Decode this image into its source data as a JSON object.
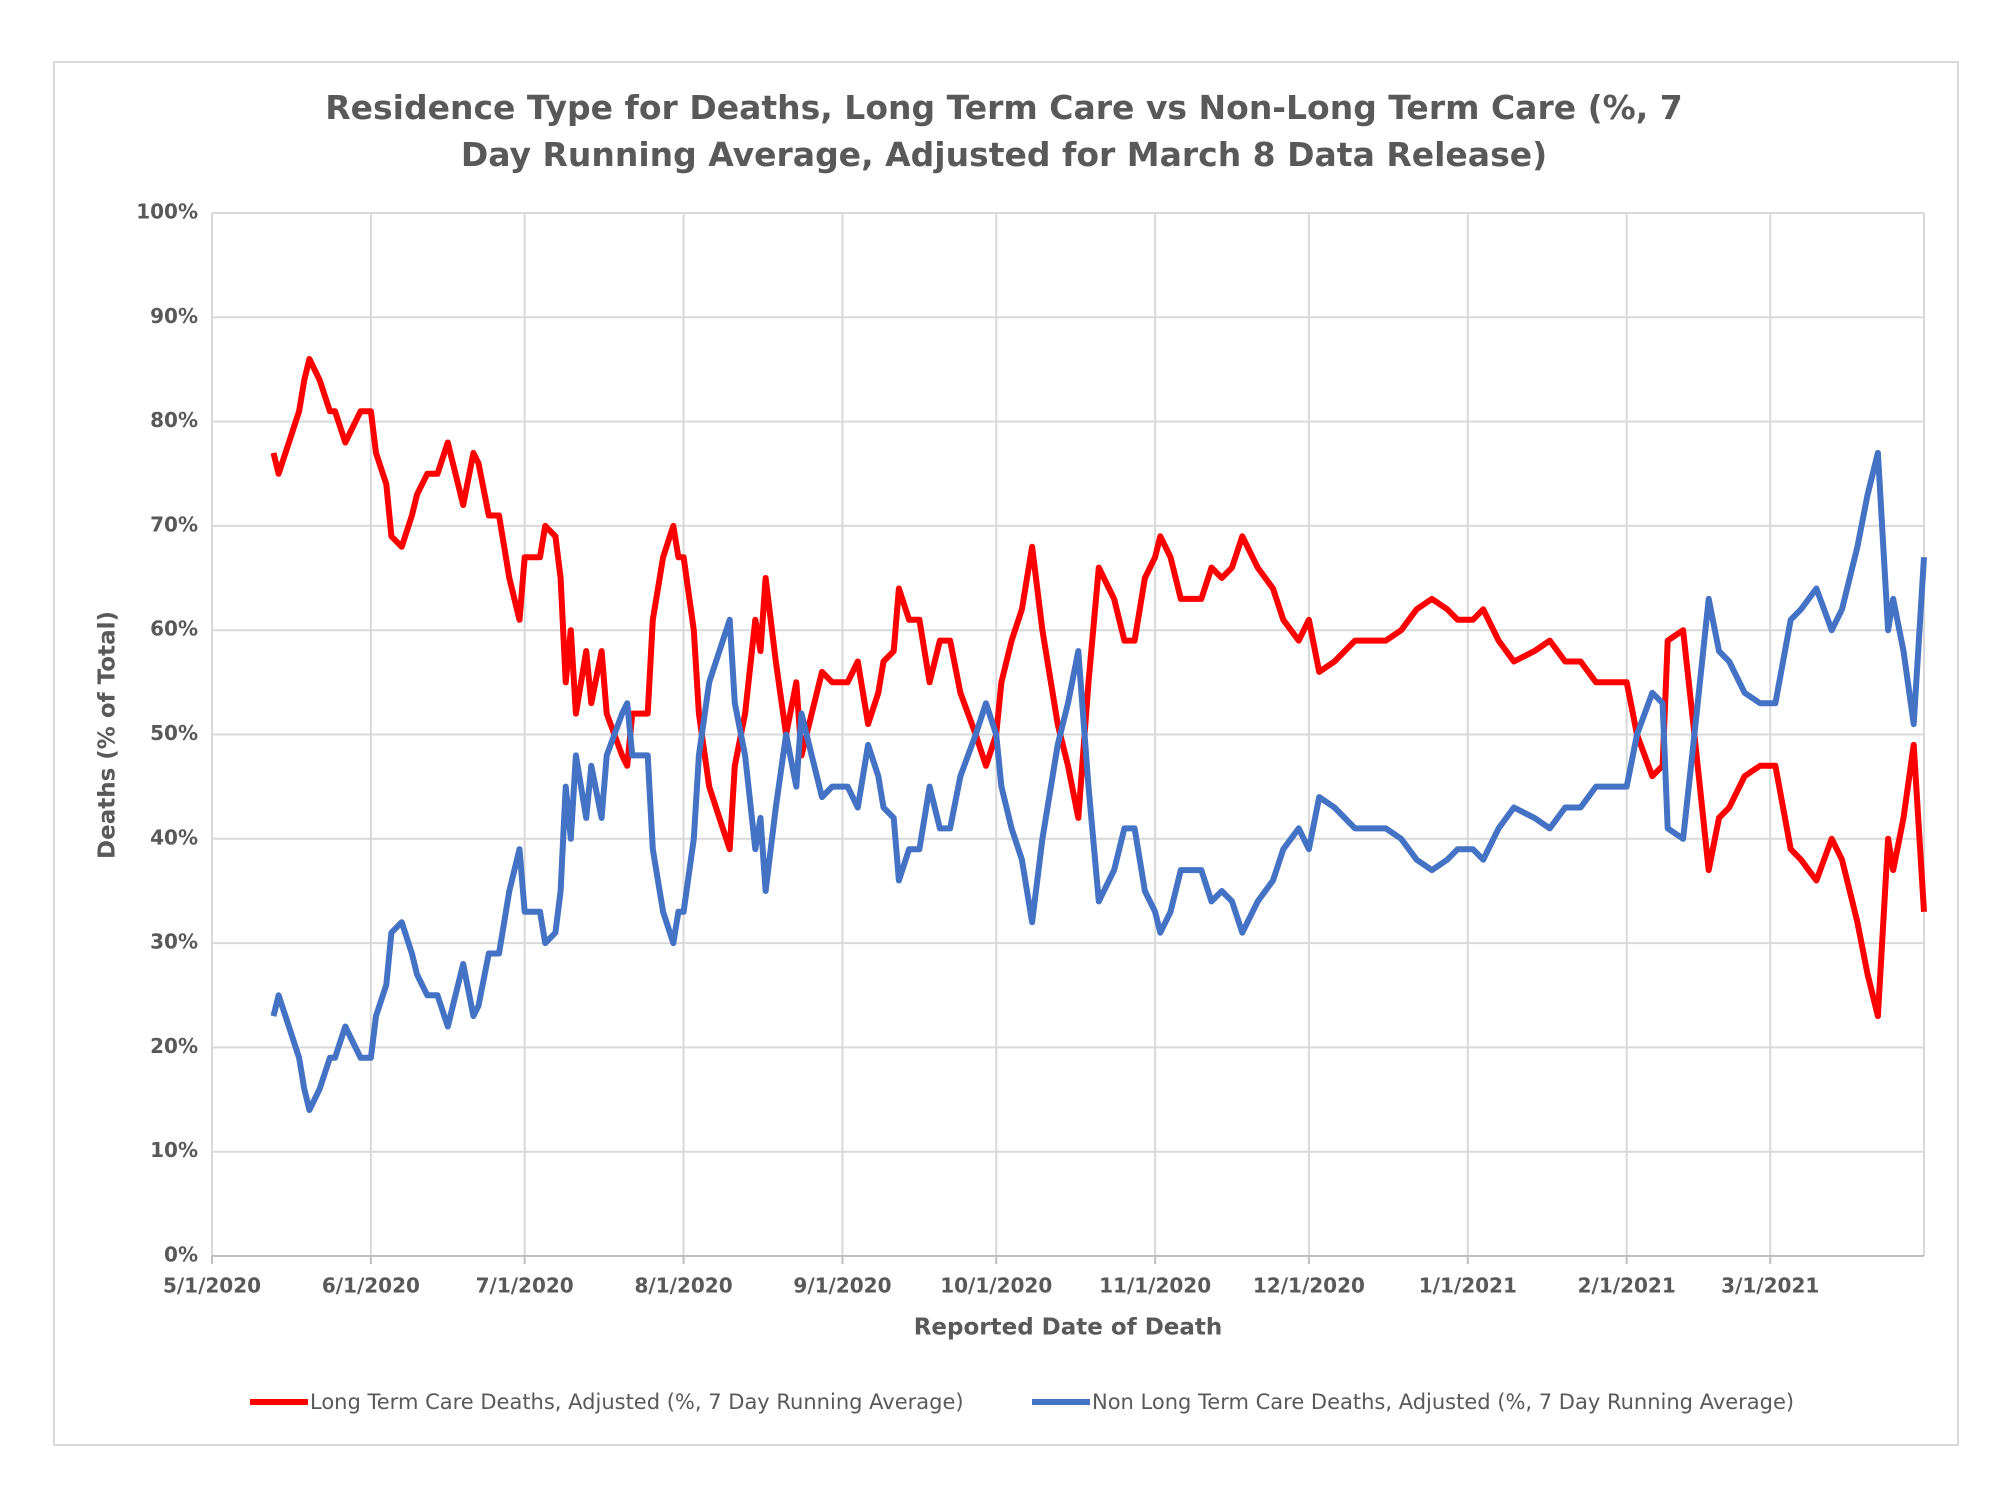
{
  "chart_data": {
    "type": "line",
    "title": "Residence Type for Deaths, Long Term Care vs Non-Long Term Care (%, 7 Day Running Average, Adjusted for March 8 Data Release)",
    "x_label": "Reported Date of Death",
    "y_label": "Deaths (% of Total)",
    "x": [
      "5/13/2020",
      "5/14/2020",
      "5/16/2020",
      "5/18/2020",
      "5/19/2020",
      "5/20/2020",
      "5/22/2020",
      "5/24/2020",
      "5/25/2020",
      "5/27/2020",
      "5/29/2020",
      "5/30/2020",
      "6/1/2020",
      "6/2/2020",
      "6/4/2020",
      "6/5/2020",
      "6/7/2020",
      "6/9/2020",
      "6/10/2020",
      "6/12/2020",
      "6/14/2020",
      "6/16/2020",
      "6/17/2020",
      "6/19/2020",
      "6/21/2020",
      "6/22/2020",
      "6/24/2020",
      "6/26/2020",
      "6/27/2020",
      "6/28/2020",
      "6/30/2020",
      "7/1/2020",
      "7/4/2020",
      "7/5/2020",
      "7/7/2020",
      "7/8/2020",
      "7/9/2020",
      "7/10/2020",
      "7/11/2020",
      "7/13/2020",
      "7/14/2020",
      "7/16/2020",
      "7/17/2020",
      "7/20/2020",
      "7/21/2020",
      "7/22/2020",
      "7/25/2020",
      "7/26/2020",
      "7/28/2020",
      "7/30/2020",
      "7/31/2020",
      "8/1/2020",
      "8/3/2020",
      "8/4/2020",
      "8/6/2020",
      "8/8/2020",
      "8/10/2020",
      "8/11/2020",
      "8/13/2020",
      "8/15/2020",
      "8/16/2020",
      "8/17/2020",
      "8/19/2020",
      "8/21/2020",
      "8/23/2020",
      "8/24/2020",
      "8/26/2020",
      "8/28/2020",
      "8/30/2020",
      "9/2/2020",
      "9/4/2020",
      "9/6/2020",
      "9/8/2020",
      "9/9/2020",
      "9/11/2020",
      "9/12/2020",
      "9/14/2020",
      "9/16/2020",
      "9/18/2020",
      "9/20/2020",
      "9/22/2020",
      "9/24/2020",
      "9/27/2020",
      "9/29/2020",
      "10/1/2020",
      "10/2/2020",
      "10/4/2020",
      "10/6/2020",
      "10/8/2020",
      "10/10/2020",
      "10/13/2020",
      "10/15/2020",
      "10/17/2020",
      "10/19/2020",
      "10/21/2020",
      "10/23/2020",
      "10/24/2020",
      "10/26/2020",
      "10/28/2020",
      "10/30/2020",
      "11/1/2020",
      "11/2/2020",
      "11/4/2020",
      "11/6/2020",
      "11/8/2020",
      "11/10/2020",
      "11/12/2020",
      "11/14/2020",
      "11/16/2020",
      "11/18/2020",
      "11/21/2020",
      "11/24/2020",
      "11/26/2020",
      "11/29/2020",
      "12/1/2020",
      "12/3/2020",
      "12/6/2020",
      "12/10/2020",
      "12/13/2020",
      "12/16/2020",
      "12/19/2020",
      "12/22/2020",
      "12/25/2020",
      "12/28/2020",
      "12/30/2020",
      "1/2/2021",
      "1/4/2021",
      "1/7/2021",
      "1/10/2021",
      "1/14/2021",
      "1/17/2021",
      "1/20/2021",
      "1/23/2021",
      "1/26/2021",
      "1/29/2021",
      "2/1/2021",
      "2/3/2021",
      "2/6/2021",
      "2/8/2021",
      "2/9/2021",
      "2/12/2021",
      "2/14/2021",
      "2/17/2021",
      "2/19/2021",
      "2/21/2021",
      "2/24/2021",
      "2/27/2021",
      "3/2/2021",
      "3/5/2021",
      "3/7/2021",
      "3/10/2021",
      "3/13/2021",
      "3/15/2021",
      "3/18/2021",
      "3/20/2021",
      "3/22/2021",
      "3/24/2021",
      "3/25/2021",
      "3/27/2021",
      "3/29/2021",
      "3/31/2021"
    ],
    "series": [
      {
        "name": "Long Term Care Deaths, Adjusted (%, 7 Day Running Average)",
        "color": "#ff0000",
        "values": [
          77,
          75,
          78,
          81,
          84,
          86,
          84,
          81,
          81,
          78,
          80,
          81,
          81,
          77,
          74,
          69,
          68,
          71,
          73,
          75,
          75,
          78,
          76,
          72,
          77,
          76,
          71,
          71,
          68,
          65,
          61,
          67,
          67,
          70,
          69,
          65,
          55,
          60,
          52,
          58,
          53,
          58,
          52,
          48,
          47,
          52,
          52,
          61,
          67,
          70,
          67,
          67,
          60,
          52,
          45,
          42,
          39,
          47,
          52,
          61,
          58,
          65,
          57,
          50,
          55,
          48,
          52,
          56,
          55,
          55,
          57,
          51,
          54,
          57,
          58,
          64,
          61,
          61,
          55,
          59,
          59,
          54,
          50,
          47,
          50,
          55,
          59,
          62,
          68,
          60,
          51,
          47,
          42,
          55,
          66,
          64,
          63,
          59,
          59,
          65,
          67,
          69,
          67,
          63,
          63,
          63,
          66,
          65,
          66,
          69,
          66,
          64,
          61,
          59,
          61,
          56,
          57,
          59,
          59,
          59,
          60,
          62,
          63,
          62,
          61,
          61,
          62,
          59,
          57,
          58,
          59,
          57,
          57,
          55,
          55,
          55,
          50,
          46,
          47,
          59,
          60,
          51,
          37,
          42,
          43,
          46,
          47,
          47,
          39,
          38,
          36,
          40,
          38,
          32,
          27,
          23,
          40,
          37,
          42,
          49,
          33
        ]
      },
      {
        "name": "Non Long Term Care Deaths, Adjusted (%, 7 Day Running Average)",
        "color": "#4472c4",
        "values": [
          23,
          25,
          22,
          19,
          16,
          14,
          16,
          19,
          19,
          22,
          20,
          19,
          19,
          23,
          26,
          31,
          32,
          29,
          27,
          25,
          25,
          22,
          24,
          28,
          23,
          24,
          29,
          29,
          32,
          35,
          39,
          33,
          33,
          30,
          31,
          35,
          45,
          40,
          48,
          42,
          47,
          42,
          48,
          52,
          53,
          48,
          48,
          39,
          33,
          30,
          33,
          33,
          40,
          48,
          55,
          58,
          61,
          53,
          48,
          39,
          42,
          35,
          43,
          50,
          45,
          52,
          48,
          44,
          45,
          45,
          43,
          49,
          46,
          43,
          42,
          36,
          39,
          39,
          45,
          41,
          41,
          46,
          50,
          53,
          50,
          45,
          41,
          38,
          32,
          40,
          49,
          53,
          58,
          45,
          34,
          36,
          37,
          41,
          41,
          35,
          33,
          31,
          33,
          37,
          37,
          37,
          34,
          35,
          34,
          31,
          34,
          36,
          39,
          41,
          39,
          44,
          43,
          41,
          41,
          41,
          40,
          38,
          37,
          38,
          39,
          39,
          38,
          41,
          43,
          42,
          41,
          43,
          43,
          45,
          45,
          45,
          50,
          54,
          53,
          41,
          40,
          49,
          63,
          58,
          57,
          54,
          53,
          53,
          61,
          62,
          64,
          60,
          62,
          68,
          73,
          77,
          60,
          63,
          58,
          51,
          67
        ]
      }
    ],
    "xlim": [
      "5/1/2020",
      "3/31/2021"
    ],
    "xticks": [
      "5/1/2020",
      "6/1/2020",
      "7/1/2020",
      "8/1/2020",
      "9/1/2020",
      "10/1/2020",
      "11/1/2020",
      "12/1/2020",
      "1/1/2021",
      "2/1/2021",
      "3/1/2021"
    ],
    "ylim": [
      0,
      100
    ],
    "yticks": [
      {
        "value": 0,
        "label": "0%"
      },
      {
        "value": 10,
        "label": "10%"
      },
      {
        "value": 20,
        "label": "20%"
      },
      {
        "value": 30,
        "label": "30%"
      },
      {
        "value": 40,
        "label": "40%"
      },
      {
        "value": 50,
        "label": "50%"
      },
      {
        "value": 60,
        "label": "60%"
      },
      {
        "value": 70,
        "label": "70%"
      },
      {
        "value": 80,
        "label": "80%"
      },
      {
        "value": 90,
        "label": "90%"
      },
      {
        "value": 100,
        "label": "100%"
      }
    ],
    "grid": true,
    "legend": "bottom"
  }
}
